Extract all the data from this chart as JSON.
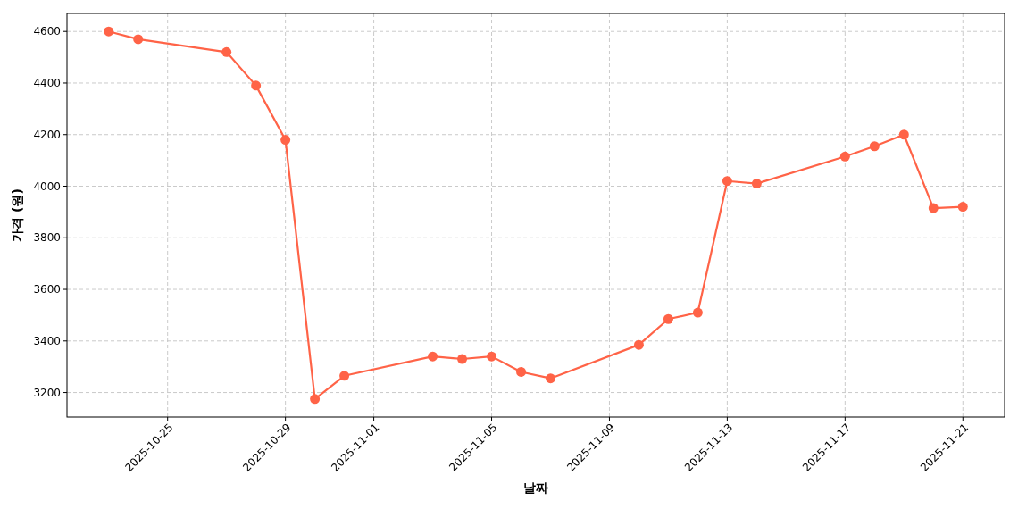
{
  "chart_data": {
    "type": "line",
    "xlabel": "날짜",
    "ylabel": "가격 (원)",
    "x": [
      "2025-10-23",
      "2025-10-24",
      "2025-10-27",
      "2025-10-28",
      "2025-10-29",
      "2025-10-30",
      "2025-10-31",
      "2025-11-03",
      "2025-11-04",
      "2025-11-05",
      "2025-11-06",
      "2025-11-07",
      "2025-11-10",
      "2025-11-11",
      "2025-11-12",
      "2025-11-13",
      "2025-11-14",
      "2025-11-17",
      "2025-11-18",
      "2025-11-19",
      "2025-11-20",
      "2025-11-21"
    ],
    "series": [
      {
        "color": "#ff6347",
        "values": [
          4600,
          4570,
          4520,
          4390,
          4180,
          3175,
          3265,
          3340,
          3330,
          3340,
          3280,
          3255,
          3385,
          3485,
          3510,
          4020,
          4010,
          4115,
          4155,
          4200,
          3915,
          3920
        ]
      }
    ],
    "xlim": [
      "2025-10-21T14:00",
      "2025-11-22T10:00"
    ],
    "ylim": [
      3105,
      4670
    ],
    "xticks": [
      "2025-10-25",
      "2025-10-29",
      "2025-11-01",
      "2025-11-05",
      "2025-11-09",
      "2025-11-13",
      "2025-11-17",
      "2025-11-21"
    ],
    "yticks": [
      3200,
      3400,
      3600,
      3800,
      4000,
      4200,
      4400,
      4600
    ],
    "grid": true,
    "marker": "circle",
    "line_style": "solid"
  }
}
